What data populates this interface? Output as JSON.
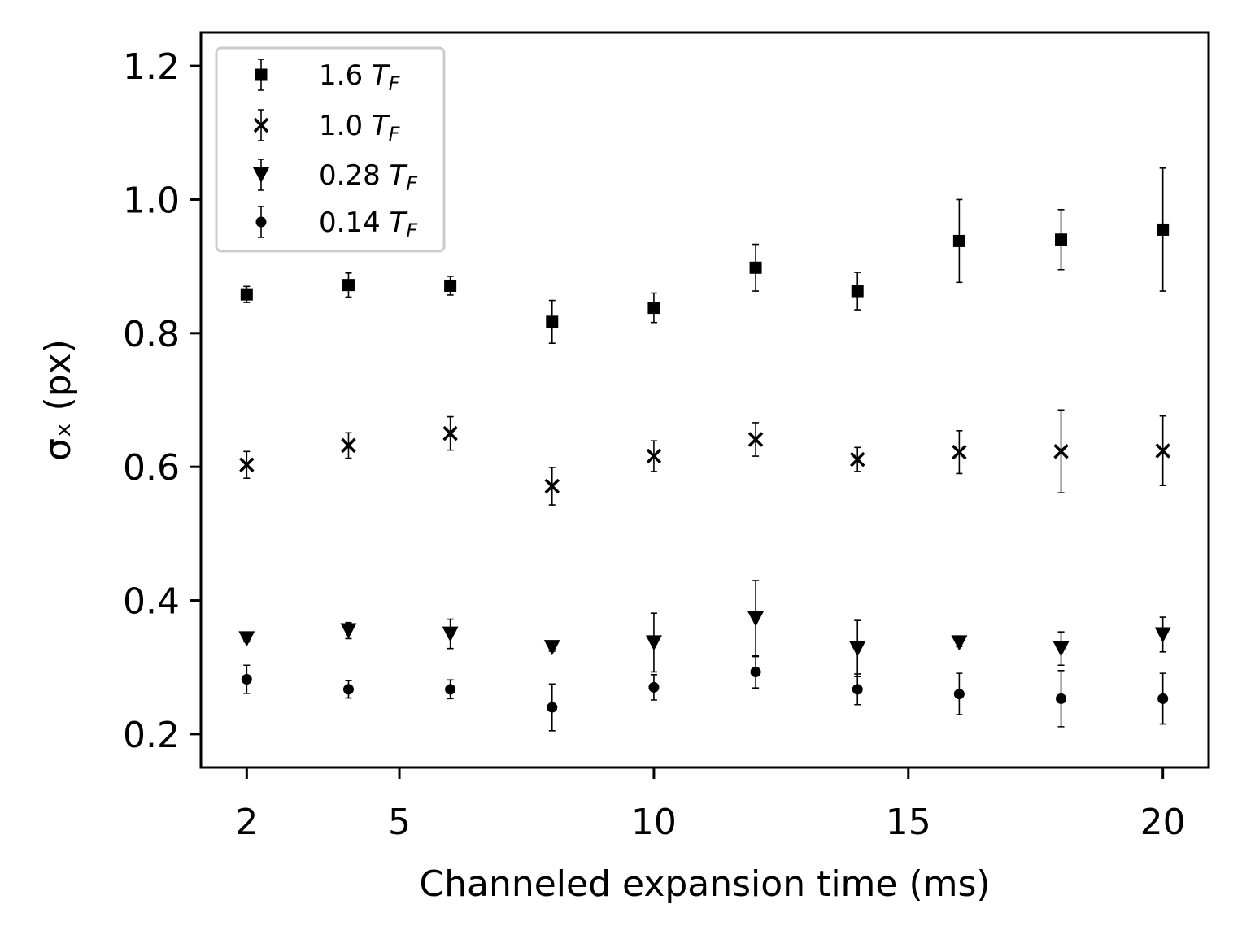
{
  "chart_data": {
    "type": "scatter",
    "title": "",
    "xlabel": "Channeled expansion time (ms)",
    "ylabel": "σₓ (px)",
    "xlim": [
      1.1,
      20.9
    ],
    "ylim": [
      0.15,
      1.25
    ],
    "xticks": [
      2,
      5,
      10,
      15,
      20
    ],
    "yticks": [
      0.2,
      0.4,
      0.6,
      0.8,
      1.0,
      1.2
    ],
    "grid": false,
    "legend_position": "top-left",
    "x": [
      2,
      4,
      6,
      8,
      10,
      12,
      14,
      16,
      18,
      20
    ],
    "series": [
      {
        "name": "1.6 T_F",
        "legend_prefix": "1.6 ",
        "legend_T": "T",
        "legend_sub": "F",
        "marker": "square",
        "values": [
          0.858,
          0.872,
          0.871,
          0.817,
          0.838,
          0.898,
          0.863,
          0.938,
          0.94,
          0.955
        ],
        "errors": [
          0.012,
          0.018,
          0.014,
          0.032,
          0.022,
          0.035,
          0.028,
          0.062,
          0.045,
          0.092
        ]
      },
      {
        "name": "1.0 T_F",
        "legend_prefix": "1.0 ",
        "legend_T": "T",
        "legend_sub": "F",
        "marker": "x",
        "values": [
          0.603,
          0.632,
          0.65,
          0.571,
          0.616,
          0.641,
          0.611,
          0.622,
          0.623,
          0.624
        ],
        "errors": [
          0.02,
          0.019,
          0.025,
          0.028,
          0.023,
          0.025,
          0.018,
          0.032,
          0.062,
          0.052
        ]
      },
      {
        "name": "0.28 T_F",
        "legend_prefix": "0.28 ",
        "legend_T": "T",
        "legend_sub": "F",
        "marker": "triangle-down",
        "values": [
          0.343,
          0.355,
          0.35,
          0.33,
          0.337,
          0.373,
          0.328,
          0.337,
          0.328,
          0.349
        ],
        "errors": [
          0.005,
          0.012,
          0.022,
          0.006,
          0.044,
          0.057,
          0.042,
          0.006,
          0.025,
          0.026
        ]
      },
      {
        "name": "0.14 T_F",
        "legend_prefix": "0.14 ",
        "legend_T": "T",
        "legend_sub": "F",
        "marker": "circle",
        "values": [
          0.282,
          0.267,
          0.267,
          0.24,
          0.27,
          0.293,
          0.267,
          0.26,
          0.253,
          0.253
        ],
        "errors": [
          0.021,
          0.013,
          0.014,
          0.035,
          0.019,
          0.024,
          0.023,
          0.031,
          0.042,
          0.038
        ]
      }
    ]
  }
}
